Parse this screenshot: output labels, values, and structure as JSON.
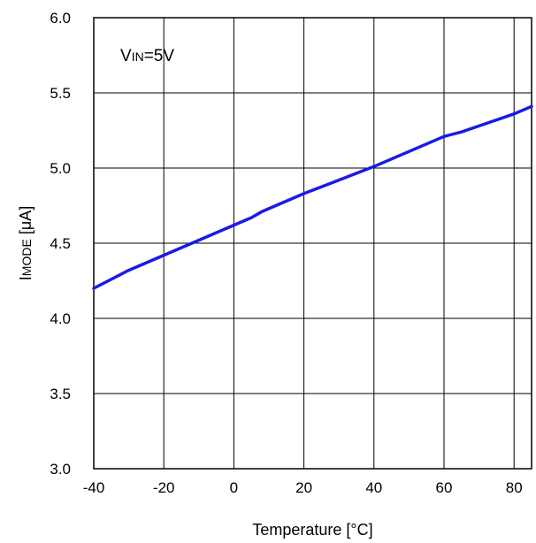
{
  "chart_data": {
    "type": "line",
    "xlabel": "Temperature [°C]",
    "ylabel": {
      "main": "I",
      "subscript": "MODE",
      "unit": " [μA]"
    },
    "annotation": {
      "main": "V",
      "subscript": "IN",
      "rest": "=5V"
    },
    "xlim": [
      -40,
      85
    ],
    "ylim": [
      3.0,
      6.0
    ],
    "xticks": [
      -40,
      -20,
      0,
      20,
      40,
      60,
      80
    ],
    "xtick_labels": [
      "-40",
      "-20",
      "0",
      "20",
      "40",
      "60",
      "80"
    ],
    "yticks": [
      3.0,
      3.5,
      4.0,
      4.5,
      5.0,
      5.5,
      6.0
    ],
    "ytick_labels": [
      "3.0",
      "3.5",
      "4.0",
      "4.5",
      "5.0",
      "5.5",
      "6.0"
    ],
    "grid": true,
    "series": [
      {
        "color": "#1a1ae6",
        "x": [
          -40,
          -30,
          -20,
          -10,
          0,
          5,
          8,
          10,
          20,
          30,
          40,
          45,
          50,
          55,
          60,
          65,
          70,
          75,
          80,
          85
        ],
        "y": [
          4.2,
          4.32,
          4.42,
          4.52,
          4.62,
          4.67,
          4.71,
          4.73,
          4.83,
          4.92,
          5.01,
          5.06,
          5.11,
          5.16,
          5.21,
          5.24,
          5.28,
          5.32,
          5.36,
          5.41
        ]
      }
    ]
  }
}
